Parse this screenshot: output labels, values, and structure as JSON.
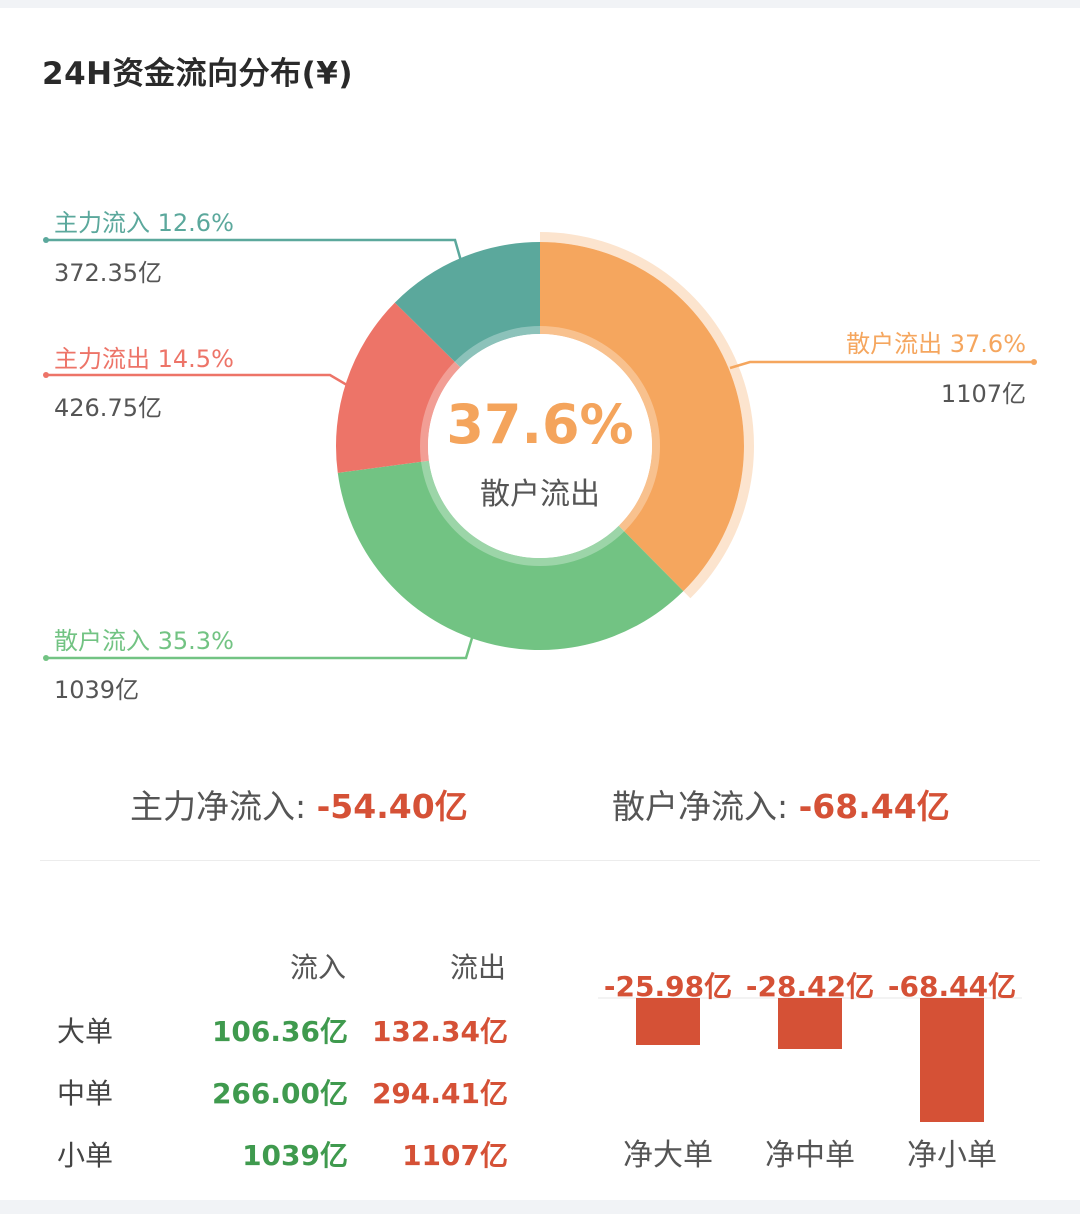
{
  "title": "24H资金流向分布(¥)",
  "chart_data": [
    {
      "type": "pie",
      "slices": [
        {
          "name": "散户流出",
          "percent": 37.6,
          "amount": "1107亿",
          "color": "#f5a65e"
        },
        {
          "name": "散户流入",
          "percent": 35.3,
          "amount": "1039亿",
          "color": "#72c383"
        },
        {
          "name": "主力流出",
          "percent": 14.5,
          "amount": "426.75亿",
          "color": "#ed7468"
        },
        {
          "name": "主力流入",
          "percent": 12.6,
          "amount": "372.35亿",
          "color": "#5ba89c"
        }
      ],
      "legend_labels": {
        "main_in": "主力流入 12.6%",
        "main_out": "主力流出 14.5%",
        "retail_in": "散户流入 35.3%",
        "retail_out": "散户流出 37.6%"
      },
      "center": {
        "value": "37.6%",
        "label": "散户流出"
      },
      "highlighted": "散户流出"
    },
    {
      "type": "bar",
      "categories": [
        "净大单",
        "净中单",
        "净小单"
      ],
      "values": [
        -25.98,
        -28.42,
        -68.44
      ],
      "value_labels": [
        "-25.98亿",
        "-28.42亿",
        "-68.44亿"
      ],
      "color": "#d55136"
    }
  ],
  "net": {
    "main_label": "主力净流入: ",
    "main_value": "-54.40亿",
    "retail_label": "散户净流入: ",
    "retail_value": "-68.44亿"
  },
  "table": {
    "headers": {
      "inflow": "流入",
      "outflow": "流出"
    },
    "rows": [
      {
        "name": "大单",
        "inflow": "106.36亿",
        "outflow": "132.34亿"
      },
      {
        "name": "中单",
        "inflow": "266.00亿",
        "outflow": "294.41亿"
      },
      {
        "name": "小单",
        "inflow": "1039亿",
        "outflow": "1107亿"
      }
    ]
  }
}
